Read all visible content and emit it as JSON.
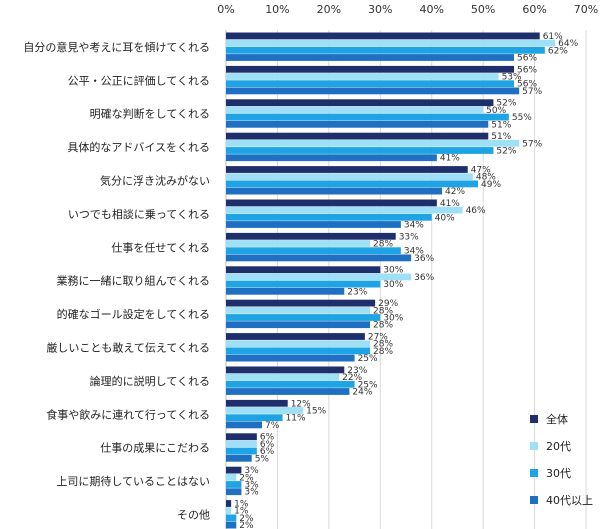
{
  "chart_data": {
    "type": "bar",
    "orientation": "horizontal",
    "categories": [
      "自分の意見や考えに耳を傾けてくれる",
      "公平・公正に評価してくれる",
      "明確な判断をしてくれる",
      "具体的なアドバイスをくれる",
      "気分に浮き沈みがない",
      "いつでも相談に乗ってくれる",
      "仕事を任せてくれる",
      "業務に一緒に取り組んでくれる",
      "的確なゴール設定をしてくれる",
      "厳しいことも敢えて伝えてくれる",
      "論理的に説明してくれる",
      "食事や飲みに連れて行ってくれる",
      "仕事の成果にこだわる",
      "上司に期待していることはない",
      "その他"
    ],
    "series": [
      {
        "name": "全体",
        "color": "#1f2f6b",
        "values": [
          61,
          56,
          52,
          51,
          47,
          41,
          33,
          30,
          29,
          27,
          23,
          12,
          6,
          3,
          1
        ]
      },
      {
        "name": "20代",
        "color": "#9fe0f6",
        "values": [
          64,
          53,
          50,
          57,
          48,
          46,
          28,
          36,
          28,
          28,
          22,
          15,
          6,
          2,
          1
        ]
      },
      {
        "name": "30代",
        "color": "#1ea4e4",
        "values": [
          62,
          56,
          55,
          52,
          49,
          40,
          34,
          30,
          30,
          28,
          25,
          11,
          6,
          3,
          2
        ]
      },
      {
        "name": "40代以上",
        "color": "#1f6fc2",
        "values": [
          56,
          57,
          51,
          41,
          42,
          34,
          36,
          23,
          28,
          25,
          24,
          7,
          5,
          3,
          2
        ]
      }
    ],
    "xlim": [
      0,
      70
    ],
    "xticks": [
      0,
      10,
      20,
      30,
      40,
      50,
      60,
      70
    ],
    "tick_suffix": "%",
    "value_suffix": "%",
    "grid": true,
    "legend_position": "bottom-right"
  }
}
